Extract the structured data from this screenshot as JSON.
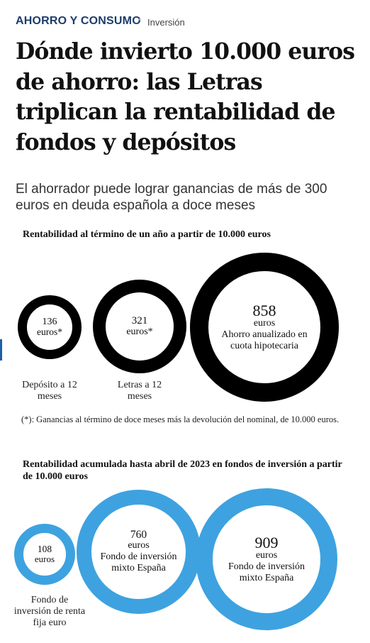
{
  "header": {
    "section": "AHORRO Y CONSUMO",
    "dot": "•",
    "subsection": "Inversión"
  },
  "headline": "Dónde invierto 10.000 euros de ahorro: las Letras triplican la rentabilidad de fondos y depósitos",
  "standfirst": "El ahorrador puede lograr ganancias de más de 300 euros en deuda española a doce meses",
  "chart1": {
    "title": "Rentabilidad al término de un año a partir de 10.000 euros",
    "items": [
      {
        "value": "136",
        "unit": "euros*",
        "caption": "Depósito a 12 meses"
      },
      {
        "value": "321",
        "unit": "euros*",
        "caption": "Letras a 12 meses"
      },
      {
        "value": "858",
        "unit": "euros",
        "label": "Ahorro anualizado en cuota hipotecaria"
      }
    ],
    "note": "(*): Ganancias al término de doce meses más la devolución del nominal, de 10.000 euros.",
    "ring_color": "#000000"
  },
  "chart2": {
    "title": "Rentabilidad acumulada hasta abril de 2023 en fondos de inversión a partir de 10.000 euros",
    "items": [
      {
        "value": "108",
        "unit": "euros",
        "caption": "Fondo de inversión de renta fija euro"
      },
      {
        "value": "760",
        "unit": "euros",
        "label": "Fondo de inversión mixto España"
      },
      {
        "value": "909",
        "unit": "euros",
        "label": "Fondo de inversión mixto España"
      }
    ],
    "ring_color": "#3ea2e0"
  }
}
